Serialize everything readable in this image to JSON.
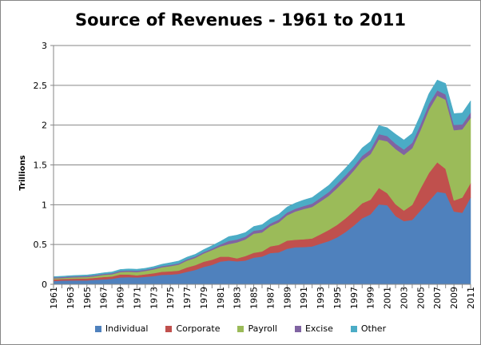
{
  "chart_data": {
    "type": "area",
    "stacked": true,
    "title": "Source of Revenues - 1961 to 2011",
    "xlabel": "",
    "ylabel": "Trillions",
    "ylim": [
      0,
      3
    ],
    "yticks": [
      "0",
      "0.5",
      "1",
      "1.5",
      "2",
      "2.5",
      "3"
    ],
    "grid": true,
    "legend": "bottom",
    "x": [
      1961,
      1962,
      1963,
      1964,
      1965,
      1966,
      1967,
      1968,
      1969,
      1970,
      1971,
      1972,
      1973,
      1974,
      1975,
      1976,
      1977,
      1978,
      1979,
      1980,
      1981,
      1982,
      1983,
      1984,
      1985,
      1986,
      1987,
      1988,
      1989,
      1990,
      1991,
      1992,
      1993,
      1994,
      1995,
      1996,
      1997,
      1998,
      1999,
      2000,
      2001,
      2002,
      2003,
      2004,
      2005,
      2006,
      2007,
      2008,
      2009,
      2010,
      2011
    ],
    "series": [
      {
        "name": "Individual",
        "color": "#4F81BD",
        "values": [
          0.041,
          0.046,
          0.048,
          0.049,
          0.049,
          0.056,
          0.062,
          0.069,
          0.087,
          0.09,
          0.086,
          0.094,
          0.103,
          0.119,
          0.122,
          0.131,
          0.157,
          0.181,
          0.218,
          0.244,
          0.286,
          0.298,
          0.289,
          0.298,
          0.335,
          0.349,
          0.393,
          0.401,
          0.446,
          0.466,
          0.468,
          0.476,
          0.51,
          0.543,
          0.59,
          0.656,
          0.737,
          0.829,
          0.879,
          1.004,
          0.994,
          0.858,
          0.794,
          0.809,
          0.927,
          1.044,
          1.163,
          1.146,
          0.915,
          0.899,
          1.091
        ]
      },
      {
        "name": "Corporate",
        "color": "#C0504D",
        "values": [
          0.021,
          0.021,
          0.022,
          0.023,
          0.025,
          0.026,
          0.03,
          0.029,
          0.037,
          0.033,
          0.027,
          0.032,
          0.036,
          0.039,
          0.041,
          0.041,
          0.055,
          0.06,
          0.066,
          0.065,
          0.061,
          0.049,
          0.037,
          0.057,
          0.061,
          0.064,
          0.084,
          0.094,
          0.103,
          0.094,
          0.098,
          0.1,
          0.118,
          0.14,
          0.157,
          0.172,
          0.182,
          0.189,
          0.184,
          0.207,
          0.151,
          0.148,
          0.132,
          0.189,
          0.278,
          0.354,
          0.37,
          0.304,
          0.138,
          0.191,
          0.181
        ]
      },
      {
        "name": "Payroll",
        "color": "#9BBB59",
        "values": [
          0.012,
          0.012,
          0.015,
          0.017,
          0.017,
          0.02,
          0.026,
          0.028,
          0.03,
          0.035,
          0.04,
          0.042,
          0.048,
          0.056,
          0.065,
          0.075,
          0.086,
          0.091,
          0.103,
          0.121,
          0.129,
          0.158,
          0.201,
          0.209,
          0.24,
          0.239,
          0.255,
          0.283,
          0.318,
          0.355,
          0.38,
          0.396,
          0.413,
          0.429,
          0.461,
          0.484,
          0.51,
          0.54,
          0.572,
          0.608,
          0.652,
          0.694,
          0.7,
          0.712,
          0.733,
          0.794,
          0.838,
          0.869,
          0.883,
          0.857,
          0.819
        ]
      },
      {
        "name": "Excise",
        "color": "#8064A2",
        "values": [
          0.012,
          0.013,
          0.013,
          0.013,
          0.014,
          0.014,
          0.013,
          0.014,
          0.015,
          0.016,
          0.017,
          0.015,
          0.016,
          0.016,
          0.016,
          0.016,
          0.017,
          0.018,
          0.018,
          0.019,
          0.024,
          0.04,
          0.036,
          0.035,
          0.037,
          0.036,
          0.032,
          0.035,
          0.035,
          0.035,
          0.038,
          0.042,
          0.045,
          0.048,
          0.055,
          0.057,
          0.054,
          0.056,
          0.058,
          0.069,
          0.066,
          0.067,
          0.067,
          0.068,
          0.073,
          0.074,
          0.066,
          0.067,
          0.067,
          0.062,
          0.067
        ]
      },
      {
        "name": "Other",
        "color": "#4BACC6",
        "values": [
          0.011,
          0.01,
          0.011,
          0.012,
          0.013,
          0.014,
          0.014,
          0.016,
          0.018,
          0.02,
          0.02,
          0.019,
          0.02,
          0.023,
          0.028,
          0.03,
          0.027,
          0.028,
          0.032,
          0.037,
          0.04,
          0.055,
          0.056,
          0.052,
          0.054,
          0.062,
          0.063,
          0.067,
          0.07,
          0.072,
          0.076,
          0.077,
          0.082,
          0.085,
          0.09,
          0.092,
          0.094,
          0.1,
          0.102,
          0.108,
          0.105,
          0.12,
          0.121,
          0.118,
          0.12,
          0.13,
          0.13,
          0.138,
          0.142,
          0.144,
          0.148
        ]
      }
    ]
  }
}
